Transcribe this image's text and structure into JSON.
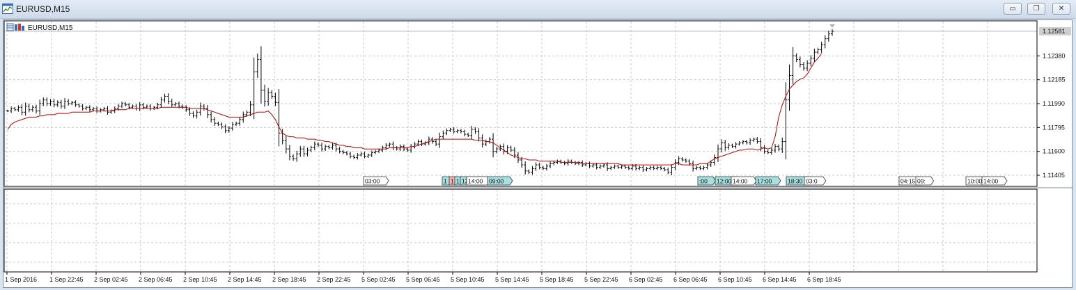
{
  "window": {
    "title": "EURUSD,M15",
    "minimize_icon": "minimize-icon",
    "restore_icon": "restore-icon",
    "close_icon": "close-icon",
    "close_glyph": "✕",
    "restore_glyph": "❐",
    "minimize_glyph": "▭"
  },
  "colors": {
    "grid": "#c8c8c8",
    "bars": "#000000",
    "moving_average": "#c00000",
    "session_tag_fill": "#a8e0e0",
    "session_tag_fill_white": "#ffffff",
    "current_price_label": "#cfcfcf"
  },
  "chart_data": {
    "type": "line",
    "symbol_label": "EURUSD,M15",
    "x_tick_labels": [
      "1 Sep 2016",
      "1 Sep 22:45",
      "2 Sep 02:45",
      "2 Sep 06:45",
      "2 Sep 10:45",
      "2 Sep 14:45",
      "2 Sep 18:45",
      "2 Sep 22:45",
      "5 Sep 02:45",
      "5 Sep 06:45",
      "5 Sep 10:45",
      "5 Sep 14:45",
      "5 Sep 18:45",
      "5 Sep 22:45",
      "6 Sep 02:45",
      "6 Sep 06:45",
      "6 Sep 10:45",
      "6 Sep 14:45",
      "6 Sep 18:45"
    ],
    "y_tick_labels": [
      "1.12380",
      "1.12185",
      "1.11990",
      "1.11795",
      "1.11600",
      "1.11405"
    ],
    "y_ticks": [
      1.1238,
      1.12185,
      1.1199,
      1.11795,
      1.116,
      1.11405
    ],
    "ylim": [
      1.1132,
      1.1266
    ],
    "current_price": 1.12581,
    "current_price_label": "1.12581",
    "grid": true,
    "session_tags": [
      {
        "label": "03:00",
        "style": "white"
      },
      {
        "label": "1",
        "style": "cyan"
      },
      {
        "label": "1",
        "style": "red"
      },
      {
        "label": "1",
        "style": "cyan"
      },
      {
        "label": "12:00",
        "style": "cyan"
      },
      {
        "label": "14:00",
        "style": "white"
      },
      {
        "label": "09:00",
        "style": "cyan"
      },
      {
        "label": ":00",
        "style": "cyan"
      },
      {
        "label": "12:00",
        "style": "cyan"
      },
      {
        "label": "14:00",
        "style": "white"
      },
      {
        "label": "17:00",
        "style": "cyan"
      },
      {
        "label": "18:30",
        "style": "cyan"
      },
      {
        "label": "03:0",
        "style": "white"
      },
      {
        "label": "04:15",
        "style": "white"
      },
      {
        "label": "09:",
        "style": "white"
      },
      {
        "label": "10:00",
        "style": "white"
      },
      {
        "label": "14:00",
        "style": "white"
      }
    ],
    "series": [
      {
        "kind": "bars",
        "values": [
          1.1193,
          1.1195,
          1.1194,
          1.1196,
          1.1192,
          1.1197,
          1.1194,
          1.1196,
          1.1193,
          1.1199,
          1.1202,
          1.1199,
          1.1201,
          1.1198,
          1.12,
          1.1197,
          1.1201,
          1.1199,
          1.12,
          1.1198,
          1.1197,
          1.1195,
          1.1196,
          1.1194,
          1.1195,
          1.1193,
          1.1194,
          1.1195,
          1.1192,
          1.1193,
          1.1195,
          1.1197,
          1.1199,
          1.1198,
          1.1196,
          1.1197,
          1.1195,
          1.1198,
          1.1196,
          1.1197,
          1.1195,
          1.1196,
          1.1198,
          1.1202,
          1.1205,
          1.1201,
          1.1198,
          1.1199,
          1.1197,
          1.1196,
          1.1194,
          1.1191,
          1.1189,
          1.1192,
          1.1197,
          1.1195,
          1.119,
          1.1186,
          1.1183,
          1.1182,
          1.118,
          1.1177,
          1.1179,
          1.1182,
          1.1183,
          1.1186,
          1.119,
          1.1192,
          1.1198,
          1.1225,
          1.1235,
          1.121,
          1.1201,
          1.1208,
          1.1205,
          1.12,
          1.1175,
          1.1169,
          1.1162,
          1.1156,
          1.1154,
          1.1158,
          1.1162,
          1.1158,
          1.1161,
          1.1163,
          1.1166,
          1.1165,
          1.1162,
          1.1164,
          1.1163,
          1.1165,
          1.1162,
          1.116,
          1.1159,
          1.1158,
          1.1156,
          1.1155,
          1.1157,
          1.1158,
          1.1156,
          1.1157,
          1.1159,
          1.116,
          1.1161,
          1.1163,
          1.1165,
          1.1166,
          1.1163,
          1.1162,
          1.1164,
          1.1162,
          1.1161,
          1.1164,
          1.1166,
          1.1168,
          1.1166,
          1.1167,
          1.117,
          1.1168,
          1.1166,
          1.1172,
          1.1175,
          1.1177,
          1.1178,
          1.1176,
          1.1177,
          1.1176,
          1.1174,
          1.1173,
          1.1178,
          1.1176,
          1.1171,
          1.1166,
          1.1168,
          1.117,
          1.116,
          1.1162,
          1.1164,
          1.116,
          1.1163,
          1.1161,
          1.1157,
          1.1153,
          1.1149,
          1.1144,
          1.1143,
          1.1146,
          1.1149,
          1.1147,
          1.1146,
          1.1148,
          1.115,
          1.1151,
          1.1152,
          1.1151,
          1.115,
          1.1152,
          1.1151,
          1.115,
          1.1151,
          1.1149,
          1.115,
          1.1148,
          1.1149,
          1.1147,
          1.1148,
          1.1149,
          1.1146,
          1.1147,
          1.1148,
          1.1147,
          1.1148,
          1.1147,
          1.1146,
          1.1148,
          1.1146,
          1.1147,
          1.1145,
          1.1146,
          1.1147,
          1.1146,
          1.1147,
          1.1146,
          1.1145,
          1.1143,
          1.1147,
          1.1151,
          1.1154,
          1.1153,
          1.1152,
          1.115,
          1.1146,
          1.1147,
          1.1146,
          1.1147,
          1.1149,
          1.1151,
          1.1155,
          1.1162,
          1.1167,
          1.1163,
          1.1165,
          1.1164,
          1.1166,
          1.1167,
          1.1168,
          1.1167,
          1.1169,
          1.117,
          1.1168,
          1.1163,
          1.116,
          1.1159,
          1.1161,
          1.1164,
          1.1162,
          1.1168,
          1.1202,
          1.1222,
          1.1238,
          1.1235,
          1.1231,
          1.1228,
          1.1232,
          1.1236,
          1.1241,
          1.1243,
          1.1247,
          1.1252,
          1.1256,
          1.1258
        ]
      },
      {
        "kind": "moving_average",
        "values": [
          1.1178,
          1.1182,
          1.1184,
          1.1185,
          1.1186,
          1.1187,
          1.1188,
          1.1188,
          1.1188,
          1.1189,
          1.1189,
          1.119,
          1.119,
          1.119,
          1.1191,
          1.1191,
          1.1191,
          1.1191,
          1.1192,
          1.1192,
          1.1192,
          1.1192,
          1.1192,
          1.1192,
          1.1193,
          1.1193,
          1.1193,
          1.1193,
          1.1193,
          1.1193,
          1.1194,
          1.1194,
          1.1194,
          1.1194,
          1.1195,
          1.1195,
          1.1195,
          1.1195,
          1.1195,
          1.1195,
          1.1195,
          1.1195,
          1.1195,
          1.1196,
          1.1196,
          1.1196,
          1.1196,
          1.1196,
          1.1196,
          1.1196,
          1.1196,
          1.1195,
          1.1195,
          1.1195,
          1.1195,
          1.1195,
          1.1194,
          1.1193,
          1.1192,
          1.1191,
          1.119,
          1.1189,
          1.1188,
          1.1188,
          1.1188,
          1.1188,
          1.1188,
          1.1189,
          1.119,
          1.1191,
          1.1192,
          1.1192,
          1.1192,
          1.1193,
          1.119,
          1.1186,
          1.118,
          1.1175,
          1.1173,
          1.1172,
          1.1172,
          1.1171,
          1.1171,
          1.1171,
          1.117,
          1.117,
          1.117,
          1.1169,
          1.1169,
          1.1168,
          1.1168,
          1.1167,
          1.1166,
          1.1165,
          1.1165,
          1.1164,
          1.1164,
          1.1163,
          1.1163,
          1.1163,
          1.1162,
          1.1162,
          1.1162,
          1.1162,
          1.1162,
          1.1162,
          1.1162,
          1.1163,
          1.1163,
          1.1163,
          1.1163,
          1.1163,
          1.1163,
          1.1164,
          1.1164,
          1.1165,
          1.1166,
          1.1167,
          1.1168,
          1.1169,
          1.117,
          1.117,
          1.117,
          1.117,
          1.117,
          1.117,
          1.117,
          1.117,
          1.117,
          1.117,
          1.117,
          1.1169,
          1.1169,
          1.1169,
          1.1168,
          1.1168,
          1.1167,
          1.1165,
          1.1163,
          1.1161,
          1.1159,
          1.1157,
          1.1156,
          1.1155,
          1.1154,
          1.1154,
          1.1153,
          1.1153,
          1.1153,
          1.1152,
          1.1152,
          1.1152,
          1.1152,
          1.1152,
          1.1152,
          1.1151,
          1.1151,
          1.1151,
          1.1151,
          1.1151,
          1.1151,
          1.115,
          1.115,
          1.115,
          1.115,
          1.115,
          1.115,
          1.115,
          1.115,
          1.115,
          1.115,
          1.115,
          1.1149,
          1.1149,
          1.1149,
          1.1149,
          1.1149,
          1.1149,
          1.1149,
          1.1149,
          1.1149,
          1.1149,
          1.1149,
          1.1149,
          1.1149,
          1.1149,
          1.1149,
          1.115,
          1.115,
          1.1149,
          1.1149,
          1.1149,
          1.1149,
          1.1149,
          1.115,
          1.115,
          1.115,
          1.1152,
          1.1154,
          1.1155,
          1.1156,
          1.1157,
          1.1158,
          1.1159,
          1.116,
          1.1161,
          1.1161,
          1.1162,
          1.1162,
          1.1162,
          1.1161,
          1.1162,
          1.1163,
          1.1162,
          1.1163,
          1.1172,
          1.1188,
          1.1198,
          1.1205,
          1.1211,
          1.1214,
          1.1217,
          1.1219,
          1.122,
          1.1223,
          1.1228,
          1.1233,
          1.1236,
          1.124
        ]
      }
    ]
  }
}
